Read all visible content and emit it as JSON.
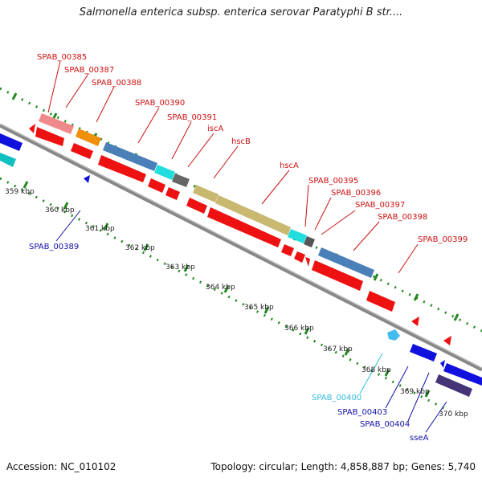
{
  "title": "Salmonella enterica subsp. enterica serovar Paratyphi B str....",
  "accession": "Accession: NC_010102",
  "stats": "Topology: circular; Length: 4,858,887 bp; Genes: 5,740",
  "colors": {
    "gene_forward": "#ee1111",
    "gene_reverse": "#1111dd",
    "label_forward": "#cc1111",
    "label_reverse": "#1111aa",
    "backbone": "#888888",
    "dots": "#228822"
  },
  "kbp_labels": [
    "359 kbp",
    "360 kbp",
    "361 kbp",
    "362 kbp",
    "363 kbp",
    "364 kbp",
    "365 kbp",
    "366 kbp",
    "367 kbp",
    "368 kbp",
    "369 kbp",
    "370 kbp"
  ],
  "forward_labels": [
    "SPAB_00385",
    "SPAB_00387",
    "SPAB_00388",
    "SPAB_00390",
    "SPAB_00391",
    "iscA",
    "hscB",
    "hscA",
    "SPAB_00395",
    "SPAB_00396",
    "SPAB_00397",
    "SPAB_00398",
    "SPAB_00399"
  ],
  "reverse_labels": [
    "SPAB_00389",
    "SPAB_00400",
    "SPAB_00403",
    "SPAB_00404",
    "sseA"
  ]
}
